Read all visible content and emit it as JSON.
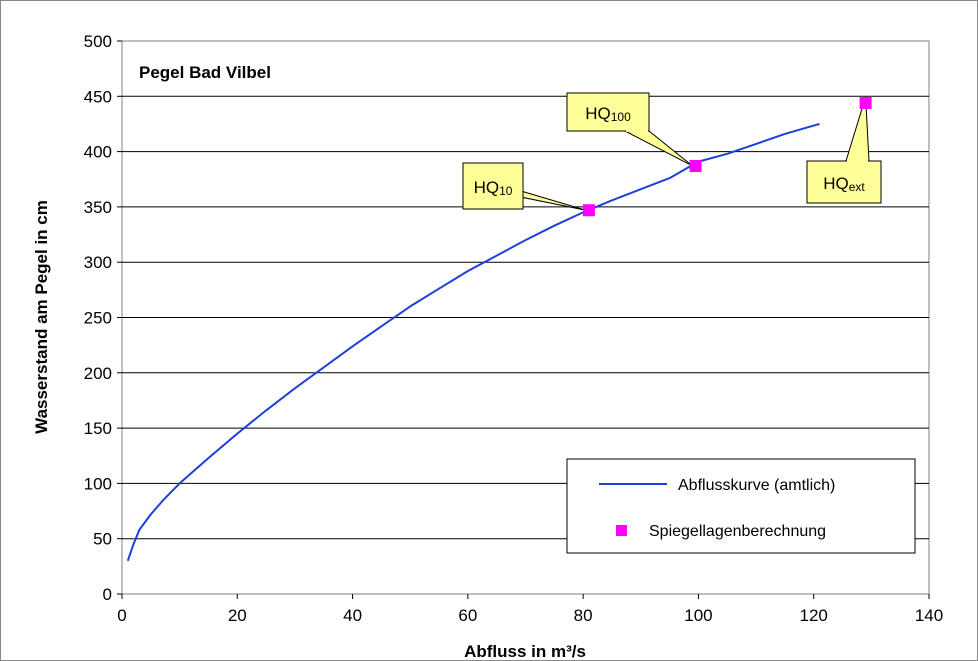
{
  "chart_data": {
    "type": "line",
    "title": "Pegel Bad Vilbel",
    "xlabel": "Abfluss in m³/s",
    "ylabel": "Wasserstand am Pegel in cm",
    "xlim": [
      0,
      140
    ],
    "ylim": [
      0,
      500
    ],
    "x_ticks": [
      "0",
      "20",
      "40",
      "60",
      "80",
      "100",
      "120",
      "140"
    ],
    "y_ticks": [
      "0",
      "50",
      "100",
      "150",
      "200",
      "250",
      "300",
      "350",
      "400",
      "450",
      "500"
    ],
    "grid": "horizontal",
    "legend_position": "bottom-right",
    "series": [
      {
        "name": "Abflusskurve (amtlich)",
        "kind": "line",
        "color": "#1f3fdc",
        "x": [
          1,
          2,
          3,
          5,
          7,
          10,
          15,
          20,
          25,
          30,
          35,
          40,
          45,
          50,
          55,
          60,
          65,
          70,
          75,
          80,
          85,
          90,
          95,
          100,
          105,
          110,
          115,
          121
        ],
        "y": [
          30,
          45,
          58,
          72,
          84,
          100,
          123,
          145,
          166,
          186,
          205,
          224,
          242,
          260,
          276,
          292,
          306,
          320,
          333,
          345,
          356,
          366,
          376,
          391,
          398,
          407,
          416,
          425
        ]
      },
      {
        "name": "Spiegellagenberechnung",
        "kind": "scatter",
        "color": "#ff00ff",
        "points": [
          {
            "x": 81,
            "y": 347
          },
          {
            "x": 99.5,
            "y": 387
          },
          {
            "x": 129,
            "y": 444
          }
        ]
      }
    ],
    "annotations": [
      {
        "main": "HQ",
        "sub": "10",
        "target": {
          "x": 81,
          "y": 347
        }
      },
      {
        "main": "HQ",
        "sub": "100",
        "target": {
          "x": 99.5,
          "y": 387
        }
      },
      {
        "main": "HQ",
        "sub": "ext",
        "target": {
          "x": 129,
          "y": 444
        }
      }
    ]
  },
  "colors": {
    "callout_fill": "#ffff99",
    "grid": "#000000",
    "frame": "#888888"
  }
}
